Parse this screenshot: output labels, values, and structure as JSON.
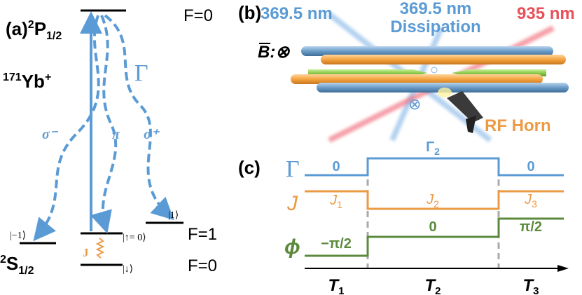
{
  "panel_a": {
    "label": "(a)",
    "upper_level": {
      "sup": "2",
      "main": "P",
      "sub": "1/2"
    },
    "upper_f": "F=0",
    "ion": {
      "sup": "171",
      "main": "Yb",
      "sup2": "+"
    },
    "gamma": "Γ",
    "sigma_minus": "σ⁻",
    "pi": "π",
    "sigma_plus": "σ⁺",
    "state_minus1": "|−1⟩",
    "state_plus1": "|1⟩",
    "f1": "F=1",
    "state_up": "|↑= 0⟩",
    "state_down": "|↓⟩",
    "coupling": "J",
    "f0": "F=0",
    "lower_level": {
      "sup": "2",
      "main": "S",
      "sub": "1/2"
    }
  },
  "panel_b": {
    "label": "(b)",
    "beam_left": "369.5 nm",
    "beam_mid": "369.5 nm",
    "beam_mid_sub": "Dissipation",
    "beam_right": "935 nm",
    "field": "B",
    "field_dir": ":⊗",
    "out_of_plane": "⊗",
    "horn": "RF Horn"
  },
  "panel_c": {
    "label": "(c)",
    "rows": [
      {
        "symbol": "Γ",
        "levels": [
          {
            "main": "0"
          },
          {
            "main": "Γ",
            "sub": "2"
          },
          {
            "main": "0"
          }
        ]
      },
      {
        "symbol": "J",
        "levels": [
          {
            "main": "J",
            "sub": "1"
          },
          {
            "main": "J",
            "sub": "2"
          },
          {
            "main": "J",
            "sub": "3"
          }
        ]
      },
      {
        "symbol": "ϕ",
        "levels": [
          {
            "main": "−π/2"
          },
          {
            "main": "0"
          },
          {
            "main": "π/2"
          }
        ]
      }
    ],
    "times": [
      {
        "main": "T",
        "sub": "1"
      },
      {
        "main": "T",
        "sub": "2"
      },
      {
        "main": "T",
        "sub": "3"
      }
    ]
  }
}
